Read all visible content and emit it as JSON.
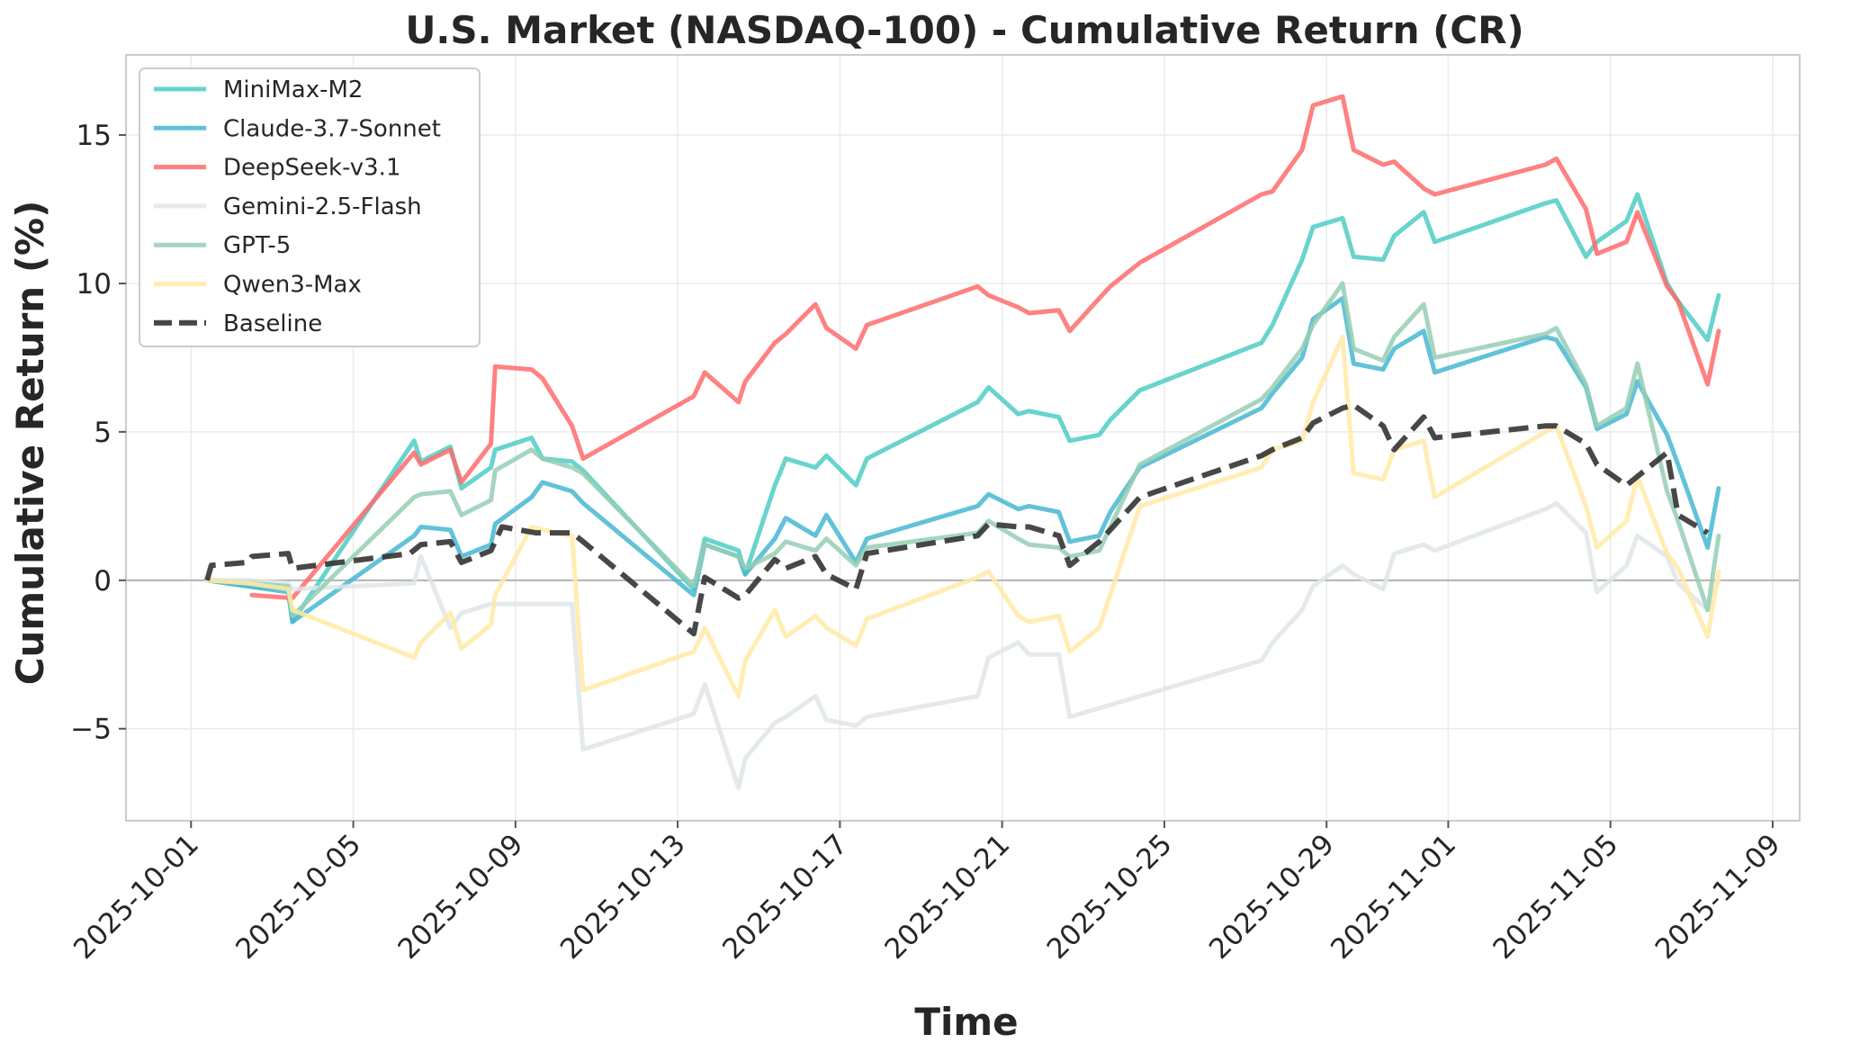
{
  "chart_data": {
    "type": "line",
    "title": "U.S. Market (NASDAQ-100) - Cumulative Return (CR)",
    "xlabel": "Time",
    "ylabel": "Cumulative Return (%)",
    "xlim": [
      "2025-09-29T09:30",
      "2025-11-09T16:00"
    ],
    "ylim": [
      -8.1,
      17.7
    ],
    "x_ticks": [
      "2025-10-01",
      "2025-10-05",
      "2025-10-09",
      "2025-10-13",
      "2025-10-17",
      "2025-10-21",
      "2025-10-25",
      "2025-10-29",
      "2025-11-01",
      "2025-11-05",
      "2025-11-09"
    ],
    "y_ticks": [
      -5,
      0,
      5,
      10,
      15
    ],
    "y_tick_labels": [
      "−5",
      "0",
      "5",
      "10",
      "15"
    ],
    "grid": true,
    "legend_position": "top-left",
    "series": [
      {
        "name": "MiniMax-M2",
        "color": "#4ECDC4",
        "style": "solid",
        "x": [
          "2025-10-01T09:30",
          "2025-10-02T09:30",
          "2025-10-03T09:30",
          "2025-10-03T12:00",
          "2025-10-06T12:00",
          "2025-10-06T16:00",
          "2025-10-07T09:30",
          "2025-10-07T16:00",
          "2025-10-08T09:30",
          "2025-10-08T12:00",
          "2025-10-09T09:30",
          "2025-10-09T16:00",
          "2025-10-10T09:30",
          "2025-10-10T16:00",
          "2025-10-13T09:30",
          "2025-10-13T16:00",
          "2025-10-14T12:00",
          "2025-10-14T16:00",
          "2025-10-15T09:30",
          "2025-10-15T16:00",
          "2025-10-16T09:30",
          "2025-10-16T16:00",
          "2025-10-17T09:30",
          "2025-10-17T16:00",
          "2025-10-20T09:30",
          "2025-10-20T16:00",
          "2025-10-21T09:30",
          "2025-10-21T16:00",
          "2025-10-22T09:30",
          "2025-10-22T16:00",
          "2025-10-23T09:30",
          "2025-10-23T16:00",
          "2025-10-24T09:30",
          "2025-10-27T09:30",
          "2025-10-27T16:00",
          "2025-10-28T09:30",
          "2025-10-28T16:00",
          "2025-10-29T09:30",
          "2025-10-29T16:00",
          "2025-10-30T09:30",
          "2025-10-30T16:00",
          "2025-10-31T09:30",
          "2025-10-31T16:00",
          "2025-11-03T09:30",
          "2025-11-03T16:00",
          "2025-11-04T09:30",
          "2025-11-04T16:00",
          "2025-11-05T09:30",
          "2025-11-05T16:00",
          "2025-11-06T09:30",
          "2025-11-06T16:00",
          "2025-11-07T09:30",
          "2025-11-07T16:00"
        ],
        "y": [
          0,
          -0.2,
          -0.3,
          -1.4,
          4.7,
          4.0,
          4.5,
          3.1,
          3.8,
          4.4,
          4.8,
          4.1,
          4.0,
          3.7,
          -0.3,
          1.4,
          1.0,
          0.2,
          3.2,
          4.1,
          3.8,
          4.2,
          3.2,
          4.1,
          6.0,
          6.5,
          5.6,
          5.7,
          5.5,
          4.7,
          4.9,
          5.4,
          6.4,
          8.0,
          8.6,
          10.8,
          11.9,
          12.2,
          10.9,
          10.8,
          11.6,
          12.4,
          11.4,
          12.7,
          12.8,
          10.9,
          11.4,
          12.1,
          13.0,
          10.0,
          9.4,
          8.1,
          9.6
        ]
      },
      {
        "name": "Claude-3.7-Sonnet",
        "color": "#45B7D1",
        "style": "solid",
        "x": [
          "2025-10-01T09:30",
          "2025-10-02T09:30",
          "2025-10-03T09:30",
          "2025-10-03T12:00",
          "2025-10-06T12:00",
          "2025-10-06T16:00",
          "2025-10-07T09:30",
          "2025-10-07T16:00",
          "2025-10-08T09:30",
          "2025-10-08T12:00",
          "2025-10-09T09:30",
          "2025-10-09T16:00",
          "2025-10-10T09:30",
          "2025-10-10T16:00",
          "2025-10-13T09:30",
          "2025-10-13T16:00",
          "2025-10-14T12:00",
          "2025-10-14T16:00",
          "2025-10-15T09:30",
          "2025-10-15T16:00",
          "2025-10-16T09:30",
          "2025-10-16T16:00",
          "2025-10-17T09:30",
          "2025-10-17T16:00",
          "2025-10-20T09:30",
          "2025-10-20T16:00",
          "2025-10-21T09:30",
          "2025-10-21T16:00",
          "2025-10-22T09:30",
          "2025-10-22T16:00",
          "2025-10-23T09:30",
          "2025-10-23T16:00",
          "2025-10-24T09:30",
          "2025-10-27T09:30",
          "2025-10-27T16:00",
          "2025-10-28T09:30",
          "2025-10-28T16:00",
          "2025-10-29T09:30",
          "2025-10-29T16:00",
          "2025-10-30T09:30",
          "2025-10-30T16:00",
          "2025-10-31T09:30",
          "2025-10-31T16:00",
          "2025-11-03T09:30",
          "2025-11-03T16:00",
          "2025-11-04T09:30",
          "2025-11-04T16:00",
          "2025-11-05T09:30",
          "2025-11-05T16:00",
          "2025-11-06T09:30",
          "2025-11-06T16:00",
          "2025-11-07T09:30",
          "2025-11-07T16:00"
        ],
        "y": [
          0,
          -0.2,
          -0.4,
          -1.4,
          1.5,
          1.8,
          1.7,
          0.8,
          1.2,
          1.9,
          2.8,
          3.3,
          3.0,
          2.6,
          -0.5,
          1.2,
          0.8,
          0.2,
          1.4,
          2.1,
          1.5,
          2.2,
          0.6,
          1.4,
          2.5,
          2.9,
          2.4,
          2.5,
          2.3,
          1.3,
          1.5,
          2.3,
          3.8,
          5.8,
          6.3,
          7.5,
          8.8,
          9.5,
          7.3,
          7.1,
          7.8,
          8.4,
          7.0,
          8.2,
          8.1,
          6.5,
          5.1,
          5.6,
          6.7,
          4.9,
          3.9,
          1.1,
          3.1
        ]
      },
      {
        "name": "DeepSeek-v3.1",
        "color": "#FF6B6B",
        "style": "solid",
        "x": [
          "2025-10-02T12:00",
          "2025-10-03T12:00",
          "2025-10-06T12:00",
          "2025-10-06T16:00",
          "2025-10-07T09:30",
          "2025-10-07T16:00",
          "2025-10-08T09:30",
          "2025-10-08T12:00",
          "2025-10-09T09:30",
          "2025-10-09T16:00",
          "2025-10-10T09:30",
          "2025-10-10T16:00",
          "2025-10-13T09:30",
          "2025-10-13T16:00",
          "2025-10-14T12:00",
          "2025-10-14T16:00",
          "2025-10-15T09:30",
          "2025-10-15T16:00",
          "2025-10-16T09:30",
          "2025-10-16T16:00",
          "2025-10-17T09:30",
          "2025-10-17T16:00",
          "2025-10-20T09:30",
          "2025-10-20T16:00",
          "2025-10-21T09:30",
          "2025-10-21T16:00",
          "2025-10-22T09:30",
          "2025-10-22T16:00",
          "2025-10-23T09:30",
          "2025-10-23T16:00",
          "2025-10-24T09:30",
          "2025-10-27T09:30",
          "2025-10-27T16:00",
          "2025-10-28T09:30",
          "2025-10-28T16:00",
          "2025-10-29T09:30",
          "2025-10-29T16:00",
          "2025-10-30T09:30",
          "2025-10-30T16:00",
          "2025-10-31T09:30",
          "2025-10-31T16:00",
          "2025-11-03T09:30",
          "2025-11-03T16:00",
          "2025-11-04T09:30",
          "2025-11-04T16:00",
          "2025-11-05T09:30",
          "2025-11-05T16:00",
          "2025-11-06T09:30",
          "2025-11-06T16:00",
          "2025-11-07T09:30",
          "2025-11-07T16:00"
        ],
        "y": [
          -0.5,
          -0.6,
          4.3,
          3.9,
          4.4,
          3.3,
          4.6,
          7.2,
          7.1,
          6.8,
          5.2,
          4.1,
          6.2,
          7.0,
          6.0,
          6.7,
          8.0,
          8.3,
          9.3,
          8.5,
          7.8,
          8.6,
          9.9,
          9.6,
          9.2,
          9.0,
          9.1,
          8.4,
          9.5,
          9.9,
          10.7,
          13.0,
          13.1,
          14.5,
          16.0,
          16.3,
          14.5,
          14.0,
          14.1,
          13.2,
          13.0,
          14.0,
          14.2,
          12.5,
          11.0,
          11.4,
          12.4,
          9.9,
          9.4,
          6.6,
          8.4
        ]
      },
      {
        "name": "Gemini-2.5-Flash",
        "color": "#DFE6E9",
        "style": "solid",
        "x": [
          "2025-10-01T09:30",
          "2025-10-02T09:30",
          "2025-10-03T09:30",
          "2025-10-03T12:00",
          "2025-10-06T12:00",
          "2025-10-06T16:00",
          "2025-10-07T09:30",
          "2025-10-07T16:00",
          "2025-10-08T09:30",
          "2025-10-09T16:00",
          "2025-10-10T09:30",
          "2025-10-10T16:00",
          "2025-10-13T09:30",
          "2025-10-13T16:00",
          "2025-10-14T12:00",
          "2025-10-14T16:00",
          "2025-10-15T09:30",
          "2025-10-15T16:00",
          "2025-10-16T09:30",
          "2025-10-16T16:00",
          "2025-10-17T09:30",
          "2025-10-17T16:00",
          "2025-10-20T09:30",
          "2025-10-20T16:00",
          "2025-10-21T09:30",
          "2025-10-21T16:00",
          "2025-10-22T09:30",
          "2025-10-22T16:00",
          "2025-10-27T09:30",
          "2025-10-27T16:00",
          "2025-10-28T09:30",
          "2025-10-28T16:00",
          "2025-10-29T09:30",
          "2025-10-29T16:00",
          "2025-10-30T09:30",
          "2025-10-30T16:00",
          "2025-10-31T09:30",
          "2025-10-31T16:00",
          "2025-11-03T09:30",
          "2025-11-03T16:00",
          "2025-11-04T09:30",
          "2025-11-04T16:00",
          "2025-11-05T09:30",
          "2025-11-05T16:00",
          "2025-11-06T09:30",
          "2025-11-06T16:00",
          "2025-11-07T09:30",
          "2025-11-07T16:00"
        ],
        "y": [
          0,
          0,
          -0.1,
          -0.3,
          -0.1,
          0.8,
          -1.6,
          -1.1,
          -0.8,
          -0.8,
          -0.8,
          -5.7,
          -4.5,
          -3.5,
          -7.0,
          -6.0,
          -4.8,
          -4.6,
          -3.9,
          -4.7,
          -4.9,
          -4.6,
          -3.9,
          -2.6,
          -2.1,
          -2.5,
          -2.5,
          -4.6,
          -2.7,
          -2.1,
          -1.0,
          -0.2,
          0.5,
          0.2,
          -0.3,
          0.9,
          1.2,
          1.0,
          2.4,
          2.6,
          1.6,
          -0.4,
          0.5,
          1.5,
          0.8,
          -0.1,
          -1.0,
          0.0
        ]
      },
      {
        "name": "GPT-5",
        "color": "#96CEB4",
        "style": "solid",
        "x": [
          "2025-10-01T09:30",
          "2025-10-02T09:30",
          "2025-10-03T09:30",
          "2025-10-03T12:00",
          "2025-10-06T12:00",
          "2025-10-06T16:00",
          "2025-10-07T09:30",
          "2025-10-07T16:00",
          "2025-10-08T09:30",
          "2025-10-08T12:00",
          "2025-10-09T09:30",
          "2025-10-09T16:00",
          "2025-10-10T09:30",
          "2025-10-10T16:00",
          "2025-10-13T09:30",
          "2025-10-13T16:00",
          "2025-10-14T12:00",
          "2025-10-14T16:00",
          "2025-10-15T09:30",
          "2025-10-15T16:00",
          "2025-10-16T09:30",
          "2025-10-16T16:00",
          "2025-10-17T09:30",
          "2025-10-17T16:00",
          "2025-10-20T09:30",
          "2025-10-20T16:00",
          "2025-10-21T09:30",
          "2025-10-21T16:00",
          "2025-10-22T09:30",
          "2025-10-22T16:00",
          "2025-10-23T09:30",
          "2025-10-23T16:00",
          "2025-10-24T09:30",
          "2025-10-27T09:30",
          "2025-10-27T16:00",
          "2025-10-28T09:30",
          "2025-10-28T16:00",
          "2025-10-29T09:30",
          "2025-10-29T16:00",
          "2025-10-30T09:30",
          "2025-10-30T16:00",
          "2025-10-31T09:30",
          "2025-10-31T16:00",
          "2025-11-03T09:30",
          "2025-11-03T16:00",
          "2025-11-04T09:30",
          "2025-11-04T16:00",
          "2025-11-05T09:30",
          "2025-11-05T16:00",
          "2025-11-06T09:30",
          "2025-11-06T16:00",
          "2025-11-07T09:30",
          "2025-11-07T16:00"
        ],
        "y": [
          0,
          -0.1,
          -0.2,
          -1.2,
          2.8,
          2.9,
          3.0,
          2.2,
          2.7,
          3.7,
          4.4,
          4.1,
          3.8,
          3.6,
          -0.2,
          1.2,
          0.8,
          0.4,
          0.9,
          1.3,
          1.0,
          1.4,
          0.5,
          1.1,
          1.6,
          2.0,
          1.4,
          1.2,
          1.1,
          0.8,
          1.0,
          1.8,
          3.9,
          6.1,
          6.5,
          7.8,
          8.6,
          10.0,
          7.8,
          7.4,
          8.2,
          9.3,
          7.5,
          8.3,
          8.5,
          6.6,
          5.2,
          5.8,
          7.3,
          3.0,
          2.0,
          -1.0,
          1.5
        ]
      },
      {
        "name": "Qwen3-Max",
        "color": "#FFEAA7",
        "style": "solid",
        "x": [
          "2025-10-01T09:30",
          "2025-10-02T09:30",
          "2025-10-03T09:30",
          "2025-10-03T12:00",
          "2025-10-06T12:00",
          "2025-10-06T16:00",
          "2025-10-07T09:30",
          "2025-10-07T16:00",
          "2025-10-08T09:30",
          "2025-10-08T12:00",
          "2025-10-09T09:30",
          "2025-10-09T16:00",
          "2025-10-10T09:30",
          "2025-10-10T16:00",
          "2025-10-13T09:30",
          "2025-10-13T16:00",
          "2025-10-14T12:00",
          "2025-10-14T16:00",
          "2025-10-15T09:30",
          "2025-10-15T16:00",
          "2025-10-16T09:30",
          "2025-10-16T16:00",
          "2025-10-17T09:30",
          "2025-10-17T16:00",
          "2025-10-20T09:30",
          "2025-10-20T16:00",
          "2025-10-21T09:30",
          "2025-10-21T16:00",
          "2025-10-22T09:30",
          "2025-10-22T16:00",
          "2025-10-23T09:30",
          "2025-10-23T16:00",
          "2025-10-24T09:30",
          "2025-10-27T09:30",
          "2025-10-27T16:00",
          "2025-10-28T09:30",
          "2025-10-28T16:00",
          "2025-10-29T09:30",
          "2025-10-29T16:00",
          "2025-10-30T09:30",
          "2025-10-30T16:00",
          "2025-10-31T09:30",
          "2025-10-31T16:00",
          "2025-11-03T09:30",
          "2025-11-03T16:00",
          "2025-11-04T09:30",
          "2025-11-04T16:00",
          "2025-11-05T09:30",
          "2025-11-05T16:00",
          "2025-11-06T09:30",
          "2025-11-06T16:00",
          "2025-11-07T09:30",
          "2025-11-07T16:00"
        ],
        "y": [
          0,
          -0.1,
          -0.3,
          -1.0,
          -2.6,
          -2.1,
          -1.1,
          -2.3,
          -1.5,
          -0.5,
          1.8,
          1.7,
          1.5,
          -3.7,
          -2.4,
          -1.6,
          -3.9,
          -2.7,
          -1.0,
          -1.9,
          -1.2,
          -1.6,
          -2.2,
          -1.3,
          0.1,
          0.3,
          -1.2,
          -1.4,
          -1.2,
          -2.4,
          -1.6,
          -0.5,
          2.5,
          3.8,
          4.4,
          4.7,
          6.0,
          8.2,
          3.6,
          3.4,
          4.4,
          4.7,
          2.8,
          5.0,
          5.2,
          2.5,
          1.1,
          2.0,
          3.5,
          0.9,
          0.4,
          -1.9,
          0.3
        ]
      },
      {
        "name": "Baseline",
        "color": "#333333",
        "style": "dashed",
        "x": [
          "2025-10-01T09:30",
          "2025-10-01T12:00",
          "2025-10-02T09:30",
          "2025-10-02T12:00",
          "2025-10-03T09:30",
          "2025-10-03T12:00",
          "2025-10-06T09:30",
          "2025-10-06T16:00",
          "2025-10-07T09:30",
          "2025-10-07T16:00",
          "2025-10-08T09:30",
          "2025-10-08T16:00",
          "2025-10-09T12:00",
          "2025-10-10T09:30",
          "2025-10-10T16:00",
          "2025-10-13T09:30",
          "2025-10-13T16:00",
          "2025-10-14T12:00",
          "2025-10-14T16:00",
          "2025-10-15T09:30",
          "2025-10-15T16:00",
          "2025-10-16T09:30",
          "2025-10-16T16:00",
          "2025-10-17T09:30",
          "2025-10-17T16:00",
          "2025-10-20T09:30",
          "2025-10-20T16:00",
          "2025-10-21T09:30",
          "2025-10-21T16:00",
          "2025-10-22T09:30",
          "2025-10-22T16:00",
          "2025-10-23T09:30",
          "2025-10-23T16:00",
          "2025-10-24T09:30",
          "2025-10-27T09:30",
          "2025-10-27T16:00",
          "2025-10-28T09:30",
          "2025-10-28T16:00",
          "2025-10-29T09:30",
          "2025-10-29T16:00",
          "2025-10-30T09:30",
          "2025-10-30T16:00",
          "2025-10-31T09:30",
          "2025-10-31T16:00",
          "2025-11-03T09:30",
          "2025-11-03T16:00",
          "2025-11-04T09:30",
          "2025-11-04T16:00",
          "2025-11-05T09:30",
          "2025-11-05T16:00",
          "2025-11-06T09:30",
          "2025-11-06T16:00",
          "2025-11-07T09:30"
        ],
        "y": [
          0,
          0.5,
          0.6,
          0.8,
          0.9,
          0.4,
          0.9,
          1.2,
          1.3,
          0.6,
          1.0,
          1.8,
          1.6,
          1.6,
          1.3,
          -1.8,
          0.1,
          -0.6,
          -0.5,
          0.7,
          0.4,
          0.8,
          0.2,
          -0.3,
          0.9,
          1.5,
          1.9,
          1.8,
          1.8,
          1.5,
          0.5,
          1.3,
          1.7,
          2.8,
          4.2,
          4.4,
          4.8,
          5.3,
          5.8,
          5.9,
          5.2,
          4.4,
          5.5,
          4.8,
          5.2,
          5.2,
          4.6,
          3.9,
          3.2,
          3.5,
          4.3,
          2.2,
          1.6
        ]
      }
    ]
  }
}
